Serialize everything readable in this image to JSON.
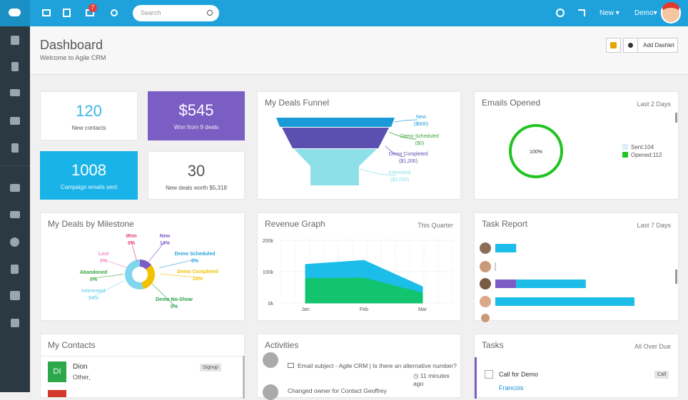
{
  "topbar": {
    "notification_count": "7",
    "search_placeholder": "Search",
    "new_menu": "New",
    "user_menu": "Demo"
  },
  "header": {
    "title": "Dashboard",
    "subtitle": "Welcome to Agile CRM",
    "add_dashlet": "Add Dashlet"
  },
  "stats": [
    {
      "value": "120",
      "label": "New contacts"
    },
    {
      "value": "$545",
      "label": "Won from 9 deals"
    },
    {
      "value": "1008",
      "label": "Campaign emails sent"
    },
    {
      "value": "30",
      "label": "New deals worth $5,318"
    }
  ],
  "funnel": {
    "title": "My Deals Funnel",
    "stages": [
      {
        "name": "New",
        "amount": "($600)",
        "color": "#1a9bd7"
      },
      {
        "name": "Demo Scheduled",
        "amount": "($0)",
        "color": "#3aa33a"
      },
      {
        "name": "Demo Completed",
        "amount": "($1,200)",
        "color": "#5b4fb0"
      },
      {
        "name": "Interested",
        "amount": "($3,000)",
        "color": "#8ee0e8"
      }
    ]
  },
  "emails": {
    "title": "Emails Opened",
    "period": "Last 2 Days",
    "rate": {
      "value": 100,
      "label": "100%"
    },
    "legend": [
      "Sent:104",
      "Opened:112"
    ]
  },
  "milestone": {
    "title": "My Deals by Milestone",
    "slices": [
      {
        "name": "Won",
        "value": 0,
        "label": "0%",
        "color": "#e0407a"
      },
      {
        "name": "New",
        "value": 14,
        "label": "14%",
        "color": "#7a5cc4"
      },
      {
        "name": "Demo Scheduled",
        "value": 0,
        "label": "0%",
        "color": "#29a3d8"
      },
      {
        "name": "Demo Completed",
        "value": 33,
        "label": "33%",
        "color": "#f2c200"
      },
      {
        "name": "Demo No-Show",
        "value": 0,
        "label": "0%",
        "color": "#27a04a"
      },
      {
        "name": "Interested",
        "value": 54,
        "label": "54%",
        "color": "#7fd6ee"
      },
      {
        "name": "Abandoned",
        "value": 0,
        "label": "0%",
        "color": "#3aa33a"
      },
      {
        "name": "Lost",
        "value": 0,
        "label": "0%",
        "color": "#f08cc0"
      }
    ]
  },
  "revenue": {
    "title": "Revenue Graph",
    "period": "This Quarter",
    "chart_data": {
      "type": "area",
      "categories": [
        "Jan",
        "Feb",
        "Mar"
      ],
      "series": [
        {
          "color": "#12c46e",
          "values": [
            80,
            82,
            34
          ]
        },
        {
          "color": "#1cbde8",
          "values": [
            43,
            54,
            18
          ]
        }
      ],
      "ylim": [
        0,
        200
      ],
      "yticks": [
        {
          "value": 0,
          "label": "0k"
        },
        {
          "value": 100,
          "label": "100k"
        },
        {
          "value": 200,
          "label": "200k"
        }
      ],
      "grid": true
    }
  },
  "task_report": {
    "title": "Task Report",
    "period": "Last 7 Days",
    "rows": [
      [
        0,
        3
      ],
      [
        0,
        0
      ],
      [
        3,
        10
      ],
      [
        0,
        20
      ]
    ],
    "colors": [
      "#7a5cc4",
      "#1cbde8"
    ]
  },
  "contacts": {
    "title": "My Contacts",
    "items": [
      {
        "initials": "DI",
        "name": "Dion",
        "company": "Other,",
        "tag": "Signup"
      }
    ]
  },
  "activities": {
    "title": "Activities",
    "items": [
      {
        "text": "Email subject - Agile CRM | Is there an alternative number?",
        "time": "11 minutes ago"
      },
      {
        "text": "Changed owner for Contact Geoffrey"
      }
    ]
  },
  "tasks": {
    "title": "Tasks",
    "period": "All Over Due",
    "items": [
      {
        "name": "Call for Demo",
        "type": "Call",
        "owner": "Francois"
      }
    ]
  }
}
